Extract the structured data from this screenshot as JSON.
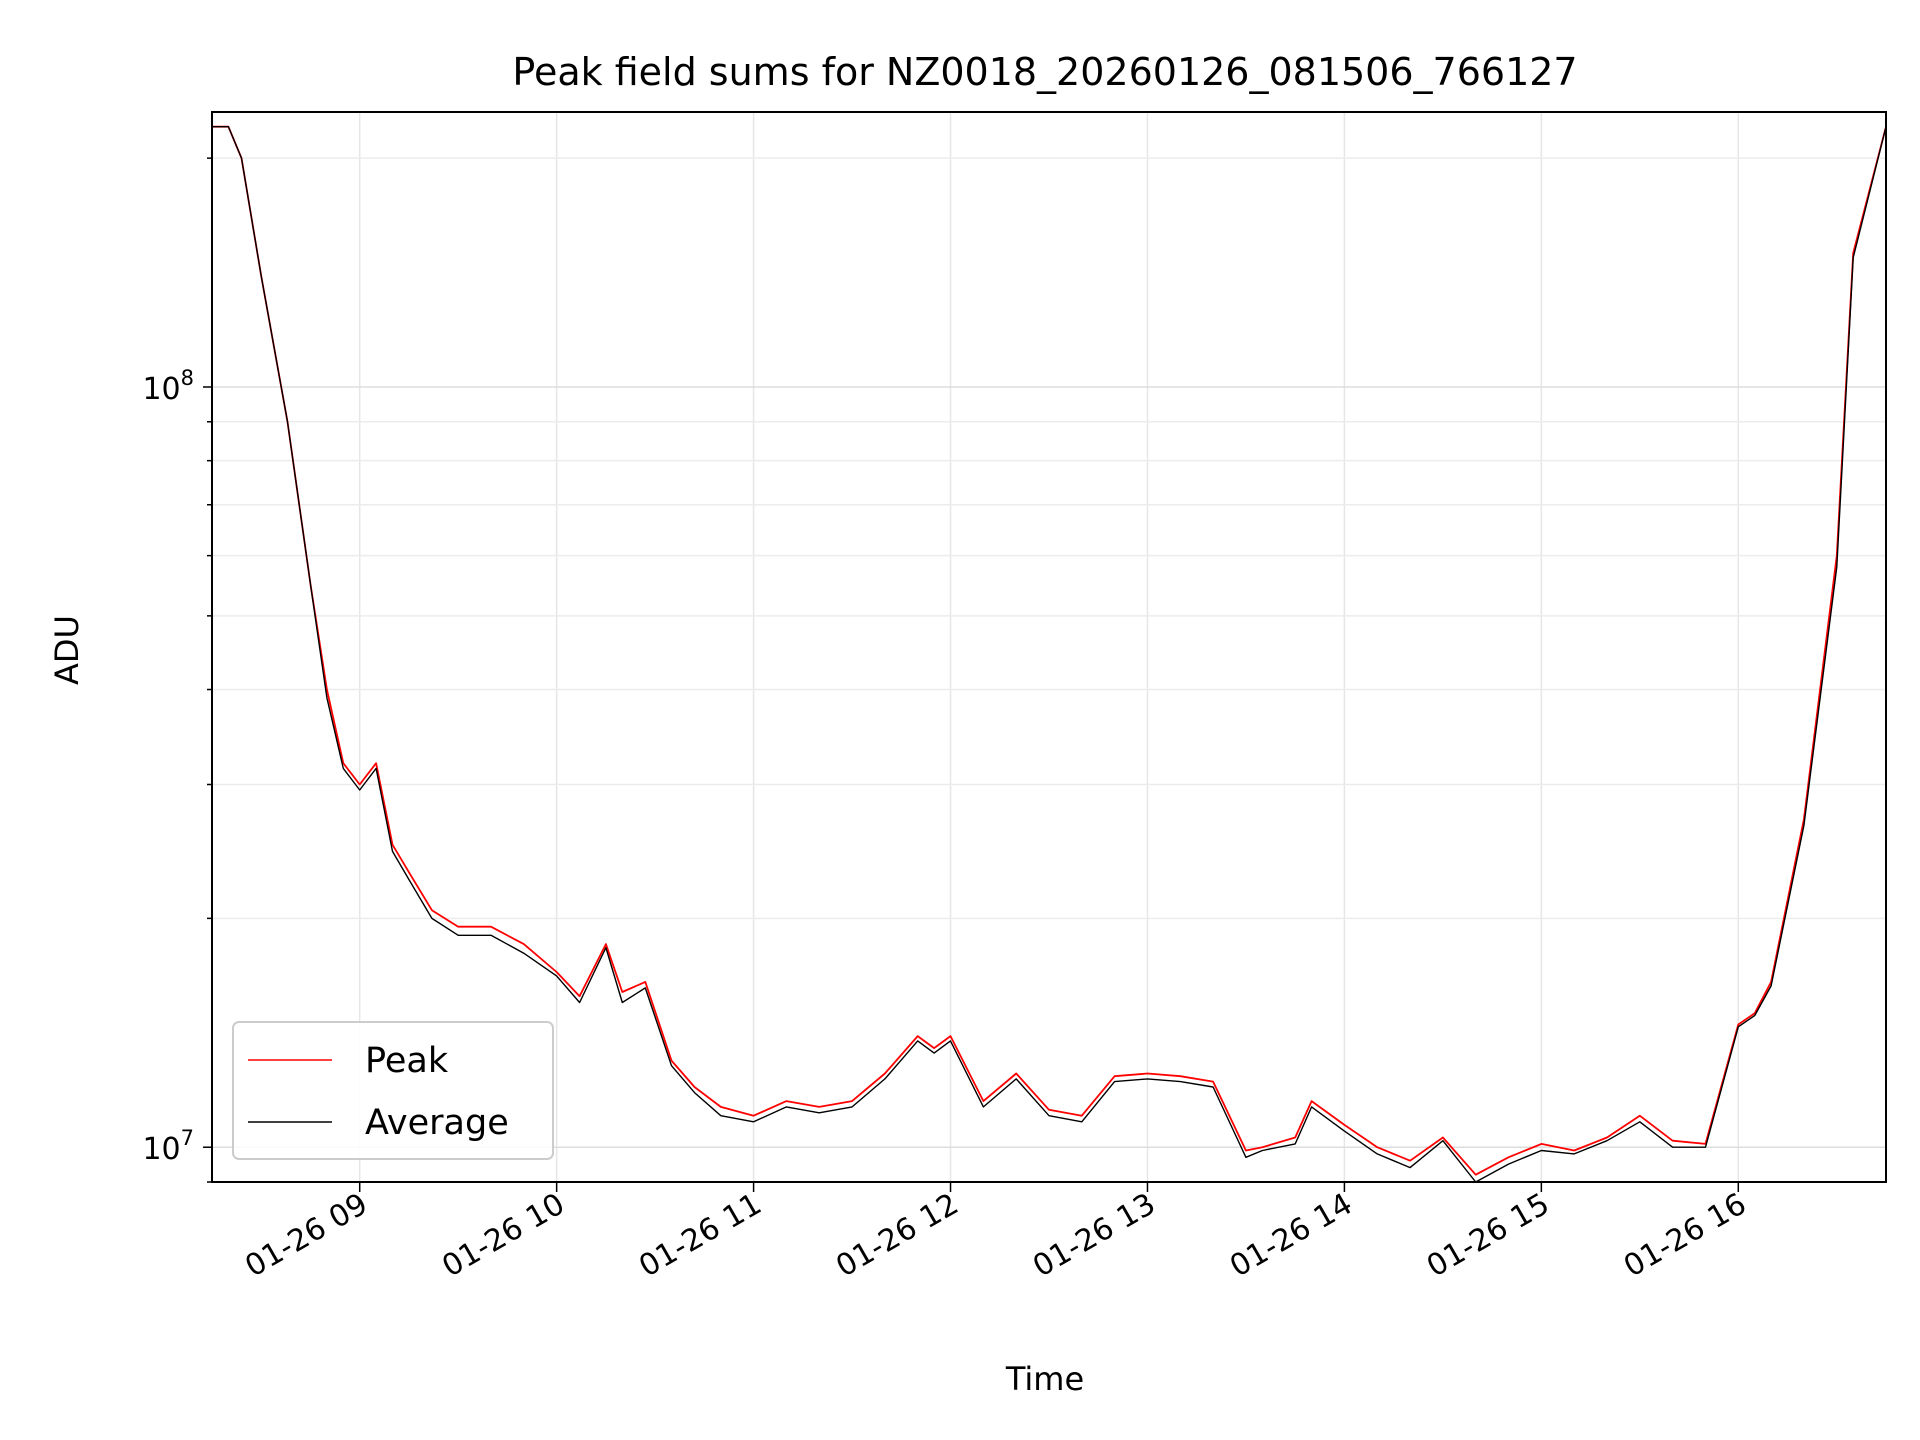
{
  "chart_data": {
    "type": "line",
    "title": "Peak field sums for NZ0018_20260126_081506_766127",
    "xlabel": "Time",
    "ylabel": "ADU",
    "yscale": "log",
    "grid": true,
    "legend_position": "lower-left",
    "xlim": [
      "2026-01-26 08:15",
      "2026-01-26 16:45"
    ],
    "ylim": [
      9000000,
      230000000
    ],
    "x_ticks": [
      {
        "value": "2026-01-26 09:00",
        "label": "01-26 09"
      },
      {
        "value": "2026-01-26 10:00",
        "label": "01-26 10"
      },
      {
        "value": "2026-01-26 11:00",
        "label": "01-26 11"
      },
      {
        "value": "2026-01-26 12:00",
        "label": "01-26 12"
      },
      {
        "value": "2026-01-26 13:00",
        "label": "01-26 13"
      },
      {
        "value": "2026-01-26 14:00",
        "label": "01-26 14"
      },
      {
        "value": "2026-01-26 15:00",
        "label": "01-26 15"
      },
      {
        "value": "2026-01-26 16:00",
        "label": "01-26 16"
      }
    ],
    "y_ticks": [
      {
        "value": 10000000,
        "base": "10",
        "exp": "7"
      },
      {
        "value": 100000000,
        "base": "10",
        "exp": "8"
      }
    ],
    "series": [
      {
        "name": "Peak",
        "color": "#ff0000",
        "x": [
          "2026-01-26 08:15",
          "2026-01-26 08:20",
          "2026-01-26 08:24",
          "2026-01-26 08:30",
          "2026-01-26 08:38",
          "2026-01-26 08:45",
          "2026-01-26 08:50",
          "2026-01-26 08:55",
          "2026-01-26 09:00",
          "2026-01-26 09:05",
          "2026-01-26 09:10",
          "2026-01-26 09:15",
          "2026-01-26 09:22",
          "2026-01-26 09:30",
          "2026-01-26 09:40",
          "2026-01-26 09:50",
          "2026-01-26 10:00",
          "2026-01-26 10:07",
          "2026-01-26 10:15",
          "2026-01-26 10:20",
          "2026-01-26 10:27",
          "2026-01-26 10:35",
          "2026-01-26 10:42",
          "2026-01-26 10:50",
          "2026-01-26 11:00",
          "2026-01-26 11:10",
          "2026-01-26 11:20",
          "2026-01-26 11:30",
          "2026-01-26 11:40",
          "2026-01-26 11:50",
          "2026-01-26 11:55",
          "2026-01-26 12:00",
          "2026-01-26 12:10",
          "2026-01-26 12:20",
          "2026-01-26 12:30",
          "2026-01-26 12:40",
          "2026-01-26 12:50",
          "2026-01-26 13:00",
          "2026-01-26 13:10",
          "2026-01-26 13:20",
          "2026-01-26 13:30",
          "2026-01-26 13:35",
          "2026-01-26 13:45",
          "2026-01-26 13:50",
          "2026-01-26 14:00",
          "2026-01-26 14:10",
          "2026-01-26 14:20",
          "2026-01-26 14:30",
          "2026-01-26 14:40",
          "2026-01-26 14:50",
          "2026-01-26 15:00",
          "2026-01-26 15:10",
          "2026-01-26 15:20",
          "2026-01-26 15:30",
          "2026-01-26 15:40",
          "2026-01-26 15:50",
          "2026-01-26 16:00",
          "2026-01-26 16:05",
          "2026-01-26 16:10",
          "2026-01-26 16:20",
          "2026-01-26 16:30",
          "2026-01-26 16:35",
          "2026-01-26 16:45"
        ],
        "values": [
          220000000,
          220000000,
          200000000,
          140000000,
          90000000,
          55000000,
          40000000,
          32000000,
          30000000,
          32000000,
          25000000,
          23000000,
          20500000,
          19500000,
          19500000,
          18500000,
          17000000,
          15800000,
          18500000,
          16000000,
          16500000,
          13000000,
          12000000,
          11300000,
          11000000,
          11500000,
          11300000,
          11500000,
          12500000,
          14000000,
          13500000,
          14000000,
          11500000,
          12500000,
          11200000,
          11000000,
          12400000,
          12500000,
          12400000,
          12200000,
          9900000,
          10000000,
          10300000,
          11500000,
          10700000,
          10000000,
          9600000,
          10300000,
          9200000,
          9700000,
          10100000,
          9900000,
          10300000,
          11000000,
          10200000,
          10100000,
          14500000,
          15000000,
          16500000,
          27000000,
          60000000,
          150000000,
          220000000
        ]
      },
      {
        "name": "Average",
        "color": "#000000",
        "x": [
          "2026-01-26 08:15",
          "2026-01-26 08:20",
          "2026-01-26 08:24",
          "2026-01-26 08:30",
          "2026-01-26 08:38",
          "2026-01-26 08:45",
          "2026-01-26 08:50",
          "2026-01-26 08:55",
          "2026-01-26 09:00",
          "2026-01-26 09:05",
          "2026-01-26 09:10",
          "2026-01-26 09:15",
          "2026-01-26 09:22",
          "2026-01-26 09:30",
          "2026-01-26 09:40",
          "2026-01-26 09:50",
          "2026-01-26 10:00",
          "2026-01-26 10:07",
          "2026-01-26 10:15",
          "2026-01-26 10:20",
          "2026-01-26 10:27",
          "2026-01-26 10:35",
          "2026-01-26 10:42",
          "2026-01-26 10:50",
          "2026-01-26 11:00",
          "2026-01-26 11:10",
          "2026-01-26 11:20",
          "2026-01-26 11:30",
          "2026-01-26 11:40",
          "2026-01-26 11:50",
          "2026-01-26 11:55",
          "2026-01-26 12:00",
          "2026-01-26 12:10",
          "2026-01-26 12:20",
          "2026-01-26 12:30",
          "2026-01-26 12:40",
          "2026-01-26 12:50",
          "2026-01-26 13:00",
          "2026-01-26 13:10",
          "2026-01-26 13:20",
          "2026-01-26 13:30",
          "2026-01-26 13:35",
          "2026-01-26 13:45",
          "2026-01-26 13:50",
          "2026-01-26 14:00",
          "2026-01-26 14:10",
          "2026-01-26 14:20",
          "2026-01-26 14:30",
          "2026-01-26 14:40",
          "2026-01-26 14:50",
          "2026-01-26 15:00",
          "2026-01-26 15:10",
          "2026-01-26 15:20",
          "2026-01-26 15:30",
          "2026-01-26 15:40",
          "2026-01-26 15:50",
          "2026-01-26 16:00",
          "2026-01-26 16:05",
          "2026-01-26 16:10",
          "2026-01-26 16:20",
          "2026-01-26 16:30",
          "2026-01-26 16:35",
          "2026-01-26 16:45"
        ],
        "values": [
          220000000,
          220000000,
          200000000,
          140000000,
          90000000,
          55000000,
          39000000,
          31500000,
          29500000,
          31500000,
          24500000,
          22500000,
          20000000,
          19000000,
          19000000,
          18000000,
          16800000,
          15500000,
          18300000,
          15500000,
          16200000,
          12800000,
          11800000,
          11000000,
          10800000,
          11300000,
          11100000,
          11300000,
          12300000,
          13800000,
          13300000,
          13800000,
          11300000,
          12300000,
          11000000,
          10800000,
          12200000,
          12300000,
          12200000,
          12000000,
          9700000,
          9900000,
          10100000,
          11300000,
          10500000,
          9800000,
          9400000,
          10200000,
          9000000,
          9500000,
          9900000,
          9800000,
          10200000,
          10800000,
          10000000,
          10000000,
          14400000,
          14900000,
          16300000,
          26500000,
          58000000,
          148000000,
          220000000
        ]
      }
    ]
  }
}
